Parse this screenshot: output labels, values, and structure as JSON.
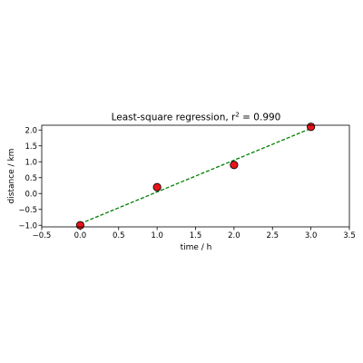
{
  "chart_data": {
    "type": "scatter",
    "title": {
      "prefix": "Least-square regression, r",
      "superscript": "2",
      "suffix": " = 0.990"
    },
    "xlabel": "time / h",
    "ylabel": "distance / km",
    "xlim": [
      -0.5,
      3.5
    ],
    "ylim": [
      -1.05,
      2.15
    ],
    "x_ticks": [
      -0.5,
      0.0,
      0.5,
      1.0,
      1.5,
      2.0,
      2.5,
      3.0,
      3.5
    ],
    "x_tick_labels": [
      "−0.5",
      "0.0",
      "0.5",
      "1.0",
      "1.5",
      "2.0",
      "2.5",
      "3.0",
      "3.5"
    ],
    "y_ticks": [
      -1.0,
      -0.5,
      0.0,
      0.5,
      1.0,
      1.5,
      2.0
    ],
    "y_tick_labels": [
      "−1.0",
      "−0.5",
      "0.0",
      "0.5",
      "1.0",
      "1.5",
      "2.0"
    ],
    "grid": false,
    "points": {
      "x": [
        0.0,
        1.0,
        2.0,
        3.0
      ],
      "y": [
        -1.0,
        0.2,
        0.9,
        2.1
      ],
      "color": "#e8141a",
      "edge_color": "#000000"
    },
    "fit_line": {
      "x": [
        0.0,
        3.0
      ],
      "y": [
        -0.95,
        2.05
      ],
      "color": "#008000",
      "style": "dashed"
    }
  }
}
